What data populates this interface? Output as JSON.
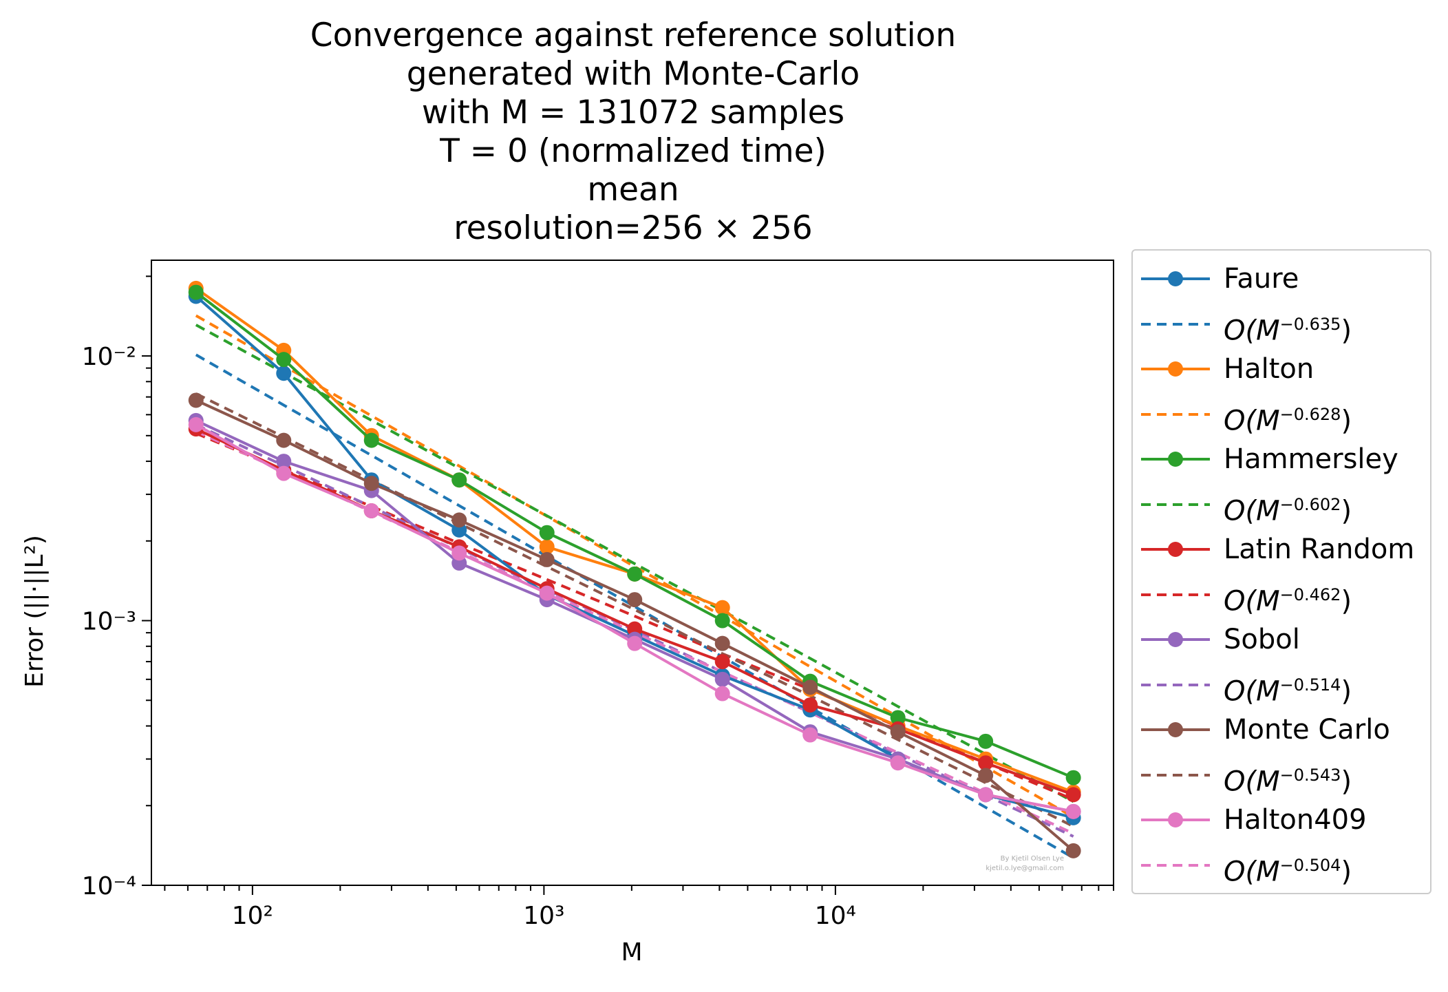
{
  "title_lines": [
    "Convergence against reference solution",
    "generated with Monte-Carlo",
    "with M = 131072 samples",
    "T = 0 (normalized time)",
    "mean",
    "resolution=256 × 256"
  ],
  "watermark": [
    "By Kjetil Olsen Lye",
    "kjetil.o.lye@gmail.com"
  ],
  "chart_data": {
    "type": "line",
    "xlabel": "M",
    "ylabel": "Error (||·||L²)",
    "xscale": "log",
    "yscale": "log",
    "xlim": [
      45,
      90000
    ],
    "ylim": [
      0.0001,
      0.023
    ],
    "xticks": [
      {
        "value": 100,
        "label": "10²"
      },
      {
        "value": 1000,
        "label": "10³"
      },
      {
        "value": 10000,
        "label": "10⁴"
      }
    ],
    "yticks": [
      {
        "value": 0.0001,
        "label": "10⁻⁴"
      },
      {
        "value": 0.001,
        "label": "10⁻³"
      },
      {
        "value": 0.01,
        "label": "10⁻²"
      }
    ],
    "legend_position": "outside right",
    "x": [
      64,
      128,
      256,
      512,
      1024,
      2048,
      4096,
      8192,
      16384,
      32768,
      65536
    ],
    "series": [
      {
        "name": "Faure",
        "color": "#1f77b4",
        "style": "solid-marker",
        "values": [
          0.0168,
          0.0086,
          0.0034,
          0.0022,
          0.00125,
          0.00088,
          0.00062,
          0.00046,
          0.0003,
          0.00022,
          0.00018
        ]
      },
      {
        "name": "O(M^-0.635)",
        "color": "#1f77b4",
        "style": "dashed",
        "exponent": -0.635,
        "values": [
          0.0101,
          0.00652,
          0.00421,
          0.00272,
          0.00175,
          0.00113,
          0.00073,
          0.00047,
          0.000305,
          0.000197,
          0.000127
        ]
      },
      {
        "name": "Halton",
        "color": "#ff7f0e",
        "style": "solid-marker",
        "values": [
          0.018,
          0.0105,
          0.005,
          0.0034,
          0.0019,
          0.0015,
          0.00112,
          0.00055,
          0.0004,
          0.0003,
          0.000225
        ]
      },
      {
        "name": "O(M^-0.628)",
        "color": "#ff7f0e",
        "style": "dashed",
        "exponent": -0.628,
        "values": [
          0.0142,
          0.00918,
          0.00594,
          0.00384,
          0.00248,
          0.0016,
          0.00104,
          0.00067,
          0.000433,
          0.00028,
          0.000181
        ]
      },
      {
        "name": "Hammersley",
        "color": "#2ca02c",
        "style": "solid-marker",
        "values": [
          0.0174,
          0.0097,
          0.0048,
          0.0034,
          0.00215,
          0.0015,
          0.001,
          0.00059,
          0.00043,
          0.00035,
          0.000255
        ]
      },
      {
        "name": "O(M^-0.602)",
        "color": "#2ca02c",
        "style": "dashed",
        "exponent": -0.602,
        "values": [
          0.0131,
          0.00864,
          0.00571,
          0.00377,
          0.00249,
          0.00164,
          0.00109,
          0.00072,
          0.000474,
          0.000313,
          0.000207
        ]
      },
      {
        "name": "Latin Random",
        "color": "#d62728",
        "style": "solid-marker",
        "values": [
          0.0053,
          0.0037,
          0.0026,
          0.0019,
          0.00132,
          0.00093,
          0.0007,
          0.00048,
          0.00039,
          0.00029,
          0.00022
        ]
      },
      {
        "name": "O(M^-0.462)",
        "color": "#d62728",
        "style": "dashed",
        "exponent": -0.462,
        "values": [
          0.0051,
          0.00371,
          0.0027,
          0.00196,
          0.00143,
          0.00104,
          0.00075,
          0.00055,
          0.000398,
          0.00029,
          0.000211
        ]
      },
      {
        "name": "Sobol",
        "color": "#9467bd",
        "style": "solid-marker",
        "values": [
          0.0057,
          0.004,
          0.0031,
          0.00165,
          0.0012,
          0.00085,
          0.0006,
          0.00038,
          0.0003,
          0.00022,
          0.00019
        ]
      },
      {
        "name": "O(M^-0.514)",
        "color": "#9467bd",
        "style": "dashed",
        "exponent": -0.514,
        "values": [
          0.0055,
          0.00385,
          0.00269,
          0.00188,
          0.00131,
          0.00092,
          0.00064,
          0.00045,
          0.000313,
          0.000219,
          0.000153
        ]
      },
      {
        "name": "Monte Carlo",
        "color": "#8c564b",
        "style": "solid-marker",
        "values": [
          0.0068,
          0.0048,
          0.0033,
          0.0024,
          0.0017,
          0.0012,
          0.00082,
          0.00056,
          0.00038,
          0.00026,
          0.000135
        ]
      },
      {
        "name": "O(M^-0.543)",
        "color": "#8c564b",
        "style": "dashed",
        "exponent": -0.543,
        "values": [
          0.0072,
          0.00494,
          0.00339,
          0.00233,
          0.0016,
          0.0011,
          0.00075,
          0.00052,
          0.000355,
          0.000244,
          0.000167
        ]
      },
      {
        "name": "Halton409",
        "color": "#e377c2",
        "style": "solid-marker",
        "values": [
          0.0055,
          0.0036,
          0.0026,
          0.0018,
          0.00127,
          0.00082,
          0.00053,
          0.00037,
          0.00029,
          0.00022,
          0.00019
        ]
      },
      {
        "name": "O(M^-0.504)",
        "color": "#e377c2",
        "style": "dashed",
        "exponent": -0.504,
        "values": [
          0.0052,
          0.00366,
          0.00258,
          0.00182,
          0.00128,
          0.0009,
          0.00064,
          0.00045,
          0.000317,
          0.000223,
          0.000157
        ]
      }
    ]
  }
}
